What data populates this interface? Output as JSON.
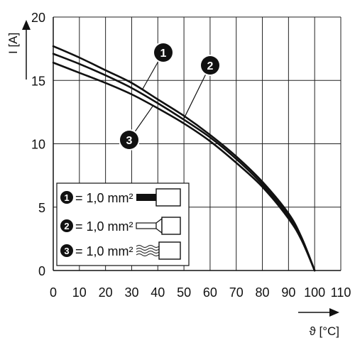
{
  "chart_data": {
    "type": "line",
    "title": "",
    "xlabel": "ϑ [°C]",
    "ylabel": "I [A]",
    "xlim": [
      0,
      110
    ],
    "ylim": [
      0,
      20
    ],
    "x_ticks": [
      0,
      10,
      20,
      30,
      40,
      50,
      60,
      70,
      80,
      90,
      100,
      110
    ],
    "y_ticks": [
      0,
      5,
      10,
      15,
      20
    ],
    "grid": true,
    "legend_position": "bottom-left",
    "series": [
      {
        "name": "1",
        "label": "= 1,0 mm²",
        "conductor": "solid-wire",
        "x": [
          0,
          10,
          20,
          30,
          40,
          50,
          60,
          70,
          80,
          90,
          95,
          100
        ],
        "y": [
          17.7,
          16.8,
          15.8,
          14.8,
          13.5,
          12.2,
          10.7,
          9.0,
          7.0,
          4.5,
          2.6,
          0
        ]
      },
      {
        "name": "2",
        "label": "= 1,0 mm²",
        "conductor": "ferrule",
        "x": [
          0,
          10,
          20,
          30,
          40,
          50,
          60,
          70,
          80,
          90,
          95,
          100
        ],
        "y": [
          17.1,
          16.3,
          15.4,
          14.4,
          13.2,
          11.9,
          10.5,
          8.8,
          6.8,
          4.3,
          2.5,
          0
        ]
      },
      {
        "name": "3",
        "label": "= 1,0 mm²",
        "conductor": "stranded-wire",
        "x": [
          0,
          10,
          20,
          30,
          40,
          50,
          60,
          70,
          80,
          90,
          95,
          100
        ],
        "y": [
          16.4,
          15.6,
          14.8,
          13.9,
          12.8,
          11.6,
          10.2,
          8.5,
          6.6,
          4.1,
          2.4,
          0
        ]
      }
    ]
  },
  "colors": {
    "line": "#111111",
    "grid": "#222222",
    "badge": "#111111",
    "background": "#ffffff"
  },
  "axes": {
    "y_title": "I [A]",
    "x_title": "ϑ [°C]"
  }
}
